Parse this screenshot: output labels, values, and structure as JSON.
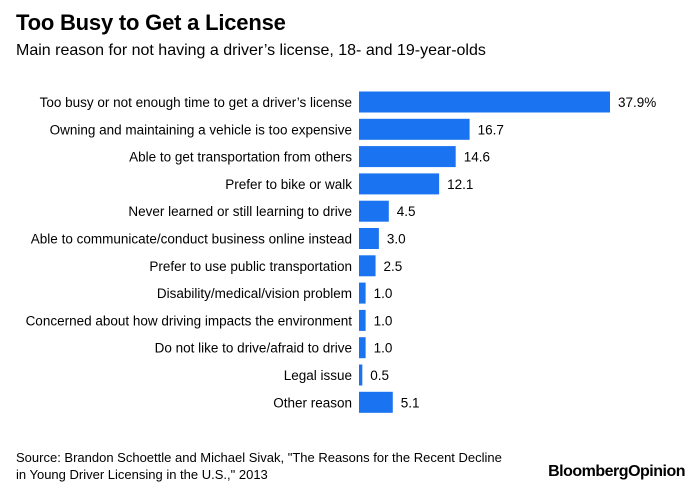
{
  "title": "Too Busy to Get a License",
  "subtitle": "Main reason for not having a driver’s license, 18- and 19-year-olds",
  "source_line1": "Source: Brandon Schoettle and Michael Sivak, \"The Reasons for the Recent Decline",
  "source_line2": "in Young Driver Licensing in the U.S.,\" 2013",
  "logo_part1": "Bloomberg",
  "logo_part2": "Opinion",
  "colors": {
    "bar": "#1a73f0",
    "text": "#000000"
  },
  "chart_data": {
    "type": "bar",
    "orientation": "horizontal",
    "categories": [
      "Too busy or not enough time to get a driver’s license",
      "Owning and maintaining a vehicle is too expensive",
      "Able to get transportation from others",
      "Prefer to bike or walk",
      "Never learned or still learning to drive",
      "Able to communicate/conduct business online instead",
      "Prefer to use public transportation",
      "Disability/medical/vision problem",
      "Concerned about how driving impacts the environment",
      "Do not like to drive/afraid to drive",
      "Legal issue",
      "Other reason"
    ],
    "values": [
      37.9,
      16.7,
      14.6,
      12.1,
      4.5,
      3.0,
      2.5,
      1.0,
      1.0,
      1.0,
      0.5,
      5.1
    ],
    "value_labels": [
      "37.9%",
      "16.7",
      "14.6",
      "12.1",
      "4.5",
      "3.0",
      "2.5",
      "1.0",
      "1.0",
      "1.0",
      "0.5",
      "5.1"
    ],
    "title": "Too Busy to Get a License",
    "xlabel": "",
    "ylabel": "",
    "xlim": [
      0,
      37.9
    ],
    "grid": false,
    "legend": "none"
  }
}
